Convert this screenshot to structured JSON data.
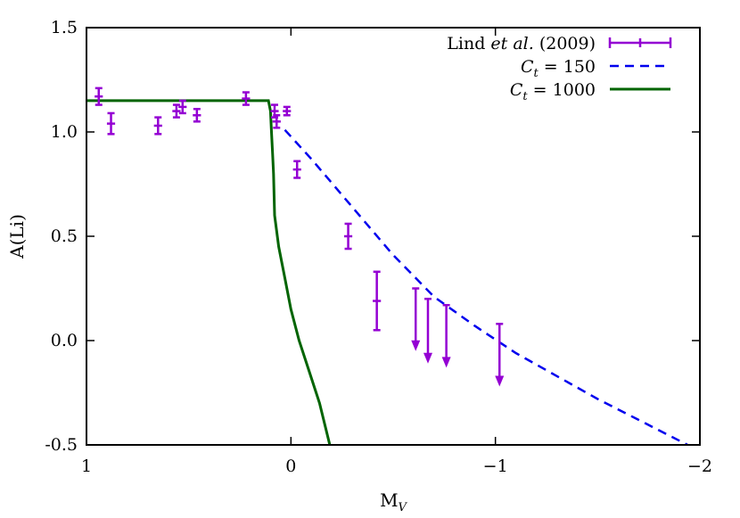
{
  "chart_data": {
    "type": "scatter",
    "xlabel": "M",
    "xlabel_sub": "V",
    "ylabel": "A(Li)",
    "xlim": [
      1,
      -2
    ],
    "ylim": [
      -0.5,
      1.5
    ],
    "x_reversed": true,
    "xticks": [
      {
        "value": 1,
        "label": "1"
      },
      {
        "value": 0,
        "label": "0"
      },
      {
        "value": -1,
        "label": "−1"
      },
      {
        "value": -2,
        "label": "−2"
      }
    ],
    "yticks": [
      {
        "value": -0.5,
        "label": "-0.5"
      },
      {
        "value": 0.0,
        "label": "0.0"
      },
      {
        "value": 0.5,
        "label": "0.5"
      },
      {
        "value": 1.0,
        "label": "1.0"
      },
      {
        "value": 1.5,
        "label": "1.5"
      }
    ],
    "grid": false,
    "legend_position": "top-right",
    "series": [
      {
        "name": "Lind et al. (2009)",
        "kind": "errorbars",
        "color": "#9400d3",
        "points": [
          {
            "x": 0.94,
            "y": 1.17,
            "yerr": 0.04,
            "xerr": 0.02
          },
          {
            "x": 0.88,
            "y": 1.04,
            "yerr": 0.05,
            "xerr": 0.02
          },
          {
            "x": 0.65,
            "y": 1.03,
            "yerr": 0.04,
            "xerr": 0.02
          },
          {
            "x": 0.56,
            "y": 1.1,
            "yerr": 0.03,
            "xerr": 0.02
          },
          {
            "x": 0.53,
            "y": 1.12,
            "yerr": 0.03,
            "xerr": 0.02
          },
          {
            "x": 0.46,
            "y": 1.08,
            "yerr": 0.03,
            "xerr": 0.02
          },
          {
            "x": 0.22,
            "y": 1.16,
            "yerr": 0.03,
            "xerr": 0.02
          },
          {
            "x": 0.08,
            "y": 1.1,
            "yerr": 0.03,
            "xerr": 0.02
          },
          {
            "x": 0.07,
            "y": 1.05,
            "yerr": 0.03,
            "xerr": 0.02
          },
          {
            "x": 0.02,
            "y": 1.1,
            "yerr": 0.02,
            "xerr": 0.02
          },
          {
            "x": -0.03,
            "y": 0.82,
            "yerr": 0.04,
            "xerr": 0.02
          },
          {
            "x": -0.28,
            "y": 0.5,
            "yerr": 0.06,
            "xerr": 0.02
          },
          {
            "x": -0.42,
            "y": 0.19,
            "yerr": 0.14,
            "xerr": 0.02
          }
        ],
        "upper_limits": [
          {
            "x": -0.61,
            "y": 0.25,
            "to": -0.05
          },
          {
            "x": -0.67,
            "y": 0.2,
            "to": -0.11
          },
          {
            "x": -0.76,
            "y": 0.17,
            "to": -0.13
          },
          {
            "x": -1.02,
            "y": 0.08,
            "to": -0.22
          }
        ]
      },
      {
        "name": "C_t = 150",
        "kind": "line",
        "dash": true,
        "color": "#0000ee",
        "x": [
          0.03,
          -0.1,
          -0.3,
          -0.5,
          -0.7,
          -0.9,
          -1.1,
          -1.3,
          -1.5,
          -1.7,
          -1.94
        ],
        "y": [
          1.01,
          0.87,
          0.64,
          0.41,
          0.21,
          0.07,
          -0.06,
          -0.17,
          -0.28,
          -0.38,
          -0.5
        ]
      },
      {
        "name": "C_t = 1000",
        "kind": "line",
        "dash": false,
        "color": "#006400",
        "x": [
          1.0,
          0.11,
          0.1,
          0.095,
          0.09,
          0.085,
          0.08,
          0.06,
          0.03,
          0.0,
          -0.04,
          -0.09,
          -0.14,
          -0.19
        ],
        "y": [
          1.15,
          1.15,
          1.1,
          1.0,
          0.9,
          0.8,
          0.6,
          0.45,
          0.3,
          0.15,
          0.0,
          -0.15,
          -0.3,
          -0.5
        ]
      }
    ],
    "legend": {
      "entries": [
        {
          "label_main": "Lind ",
          "label_italic": "et al.",
          "label_rest": " (2009)"
        },
        {
          "label_var": "C",
          "label_sub": "t",
          "label_rest": " = 150"
        },
        {
          "label_var": "C",
          "label_sub": "t",
          "label_rest": " = 1000"
        }
      ]
    }
  }
}
